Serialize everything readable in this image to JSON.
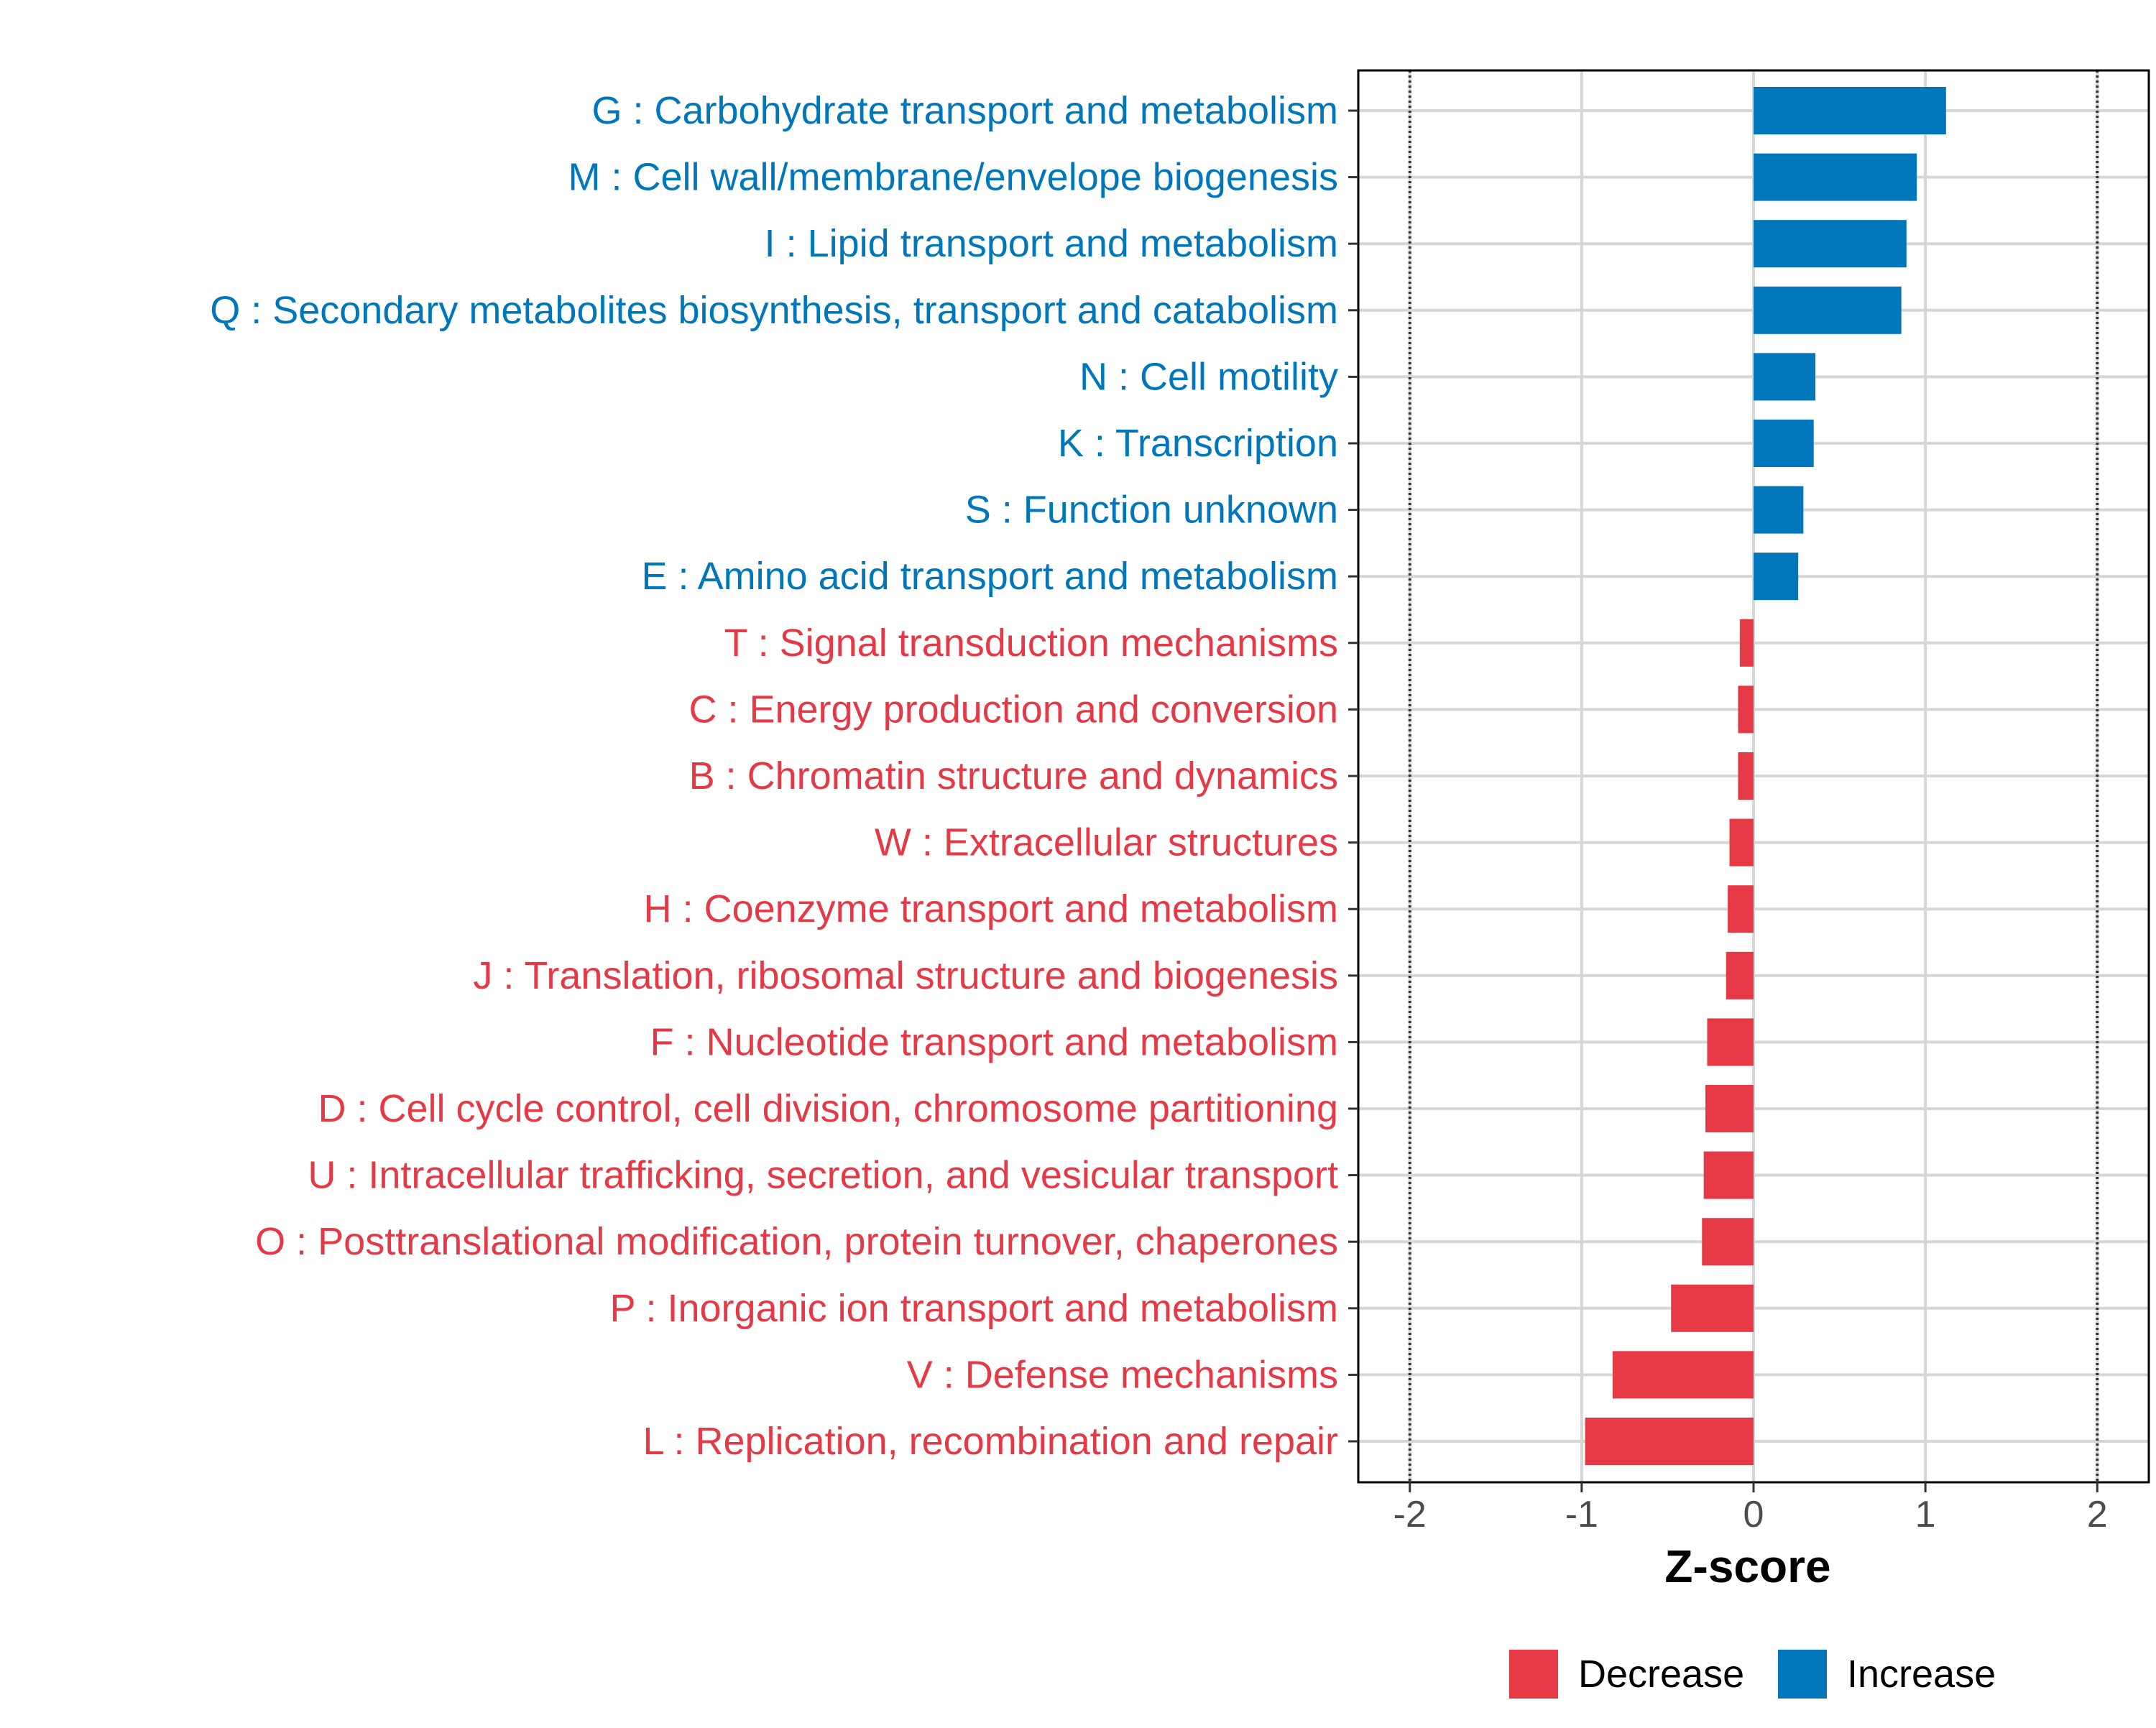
{
  "chart_data": {
    "type": "bar",
    "orientation": "horizontal",
    "title": "",
    "xlabel": "Z-score",
    "ylabel": "",
    "xlim": [
      -2.3,
      2.3
    ],
    "xticks": [
      -2,
      -1,
      0,
      1,
      2
    ],
    "xtick_labels": [
      "-2",
      "-1",
      "0",
      "1",
      "2"
    ],
    "reference_lines": [
      -2,
      2
    ],
    "grid": true,
    "legend_position": "bottom",
    "colors": {
      "Decrease": "#E63946",
      "Increase": "#0077BB"
    },
    "legend": [
      {
        "label": "Decrease",
        "color": "#E63946"
      },
      {
        "label": "Increase",
        "color": "#0077BB"
      }
    ],
    "categories": [
      "G : Carbohydrate transport and metabolism",
      "M : Cell wall/membrane/envelope biogenesis",
      "I : Lipid transport and metabolism",
      "Q : Secondary metabolites biosynthesis, transport and catabolism",
      "N : Cell motility",
      "K : Transcription",
      "S : Function unknown",
      "E : Amino acid transport and metabolism",
      "T : Signal transduction mechanisms",
      "C : Energy production and conversion",
      "B : Chromatin structure and dynamics",
      "W : Extracellular structures",
      "H : Coenzyme transport and metabolism",
      "J : Translation, ribosomal structure and biogenesis",
      "F : Nucleotide transport and metabolism",
      "D : Cell cycle control, cell division, chromosome partitioning",
      "U : Intracellular trafficking, secretion, and vesicular transport",
      "O : Posttranslational modification, protein turnover, chaperones",
      "P : Inorganic ion transport and metabolism",
      "V : Defense mechanisms",
      "L : Replication, recombination and repair"
    ],
    "values": [
      1.12,
      0.95,
      0.89,
      0.86,
      0.36,
      0.35,
      0.29,
      0.26,
      -0.08,
      -0.09,
      -0.09,
      -0.14,
      -0.15,
      -0.16,
      -0.27,
      -0.28,
      -0.29,
      -0.3,
      -0.48,
      -0.82,
      -0.98
    ],
    "groups": [
      "Increase",
      "Increase",
      "Increase",
      "Increase",
      "Increase",
      "Increase",
      "Increase",
      "Increase",
      "Decrease",
      "Decrease",
      "Decrease",
      "Decrease",
      "Decrease",
      "Decrease",
      "Decrease",
      "Decrease",
      "Decrease",
      "Decrease",
      "Decrease",
      "Decrease",
      "Decrease"
    ]
  }
}
